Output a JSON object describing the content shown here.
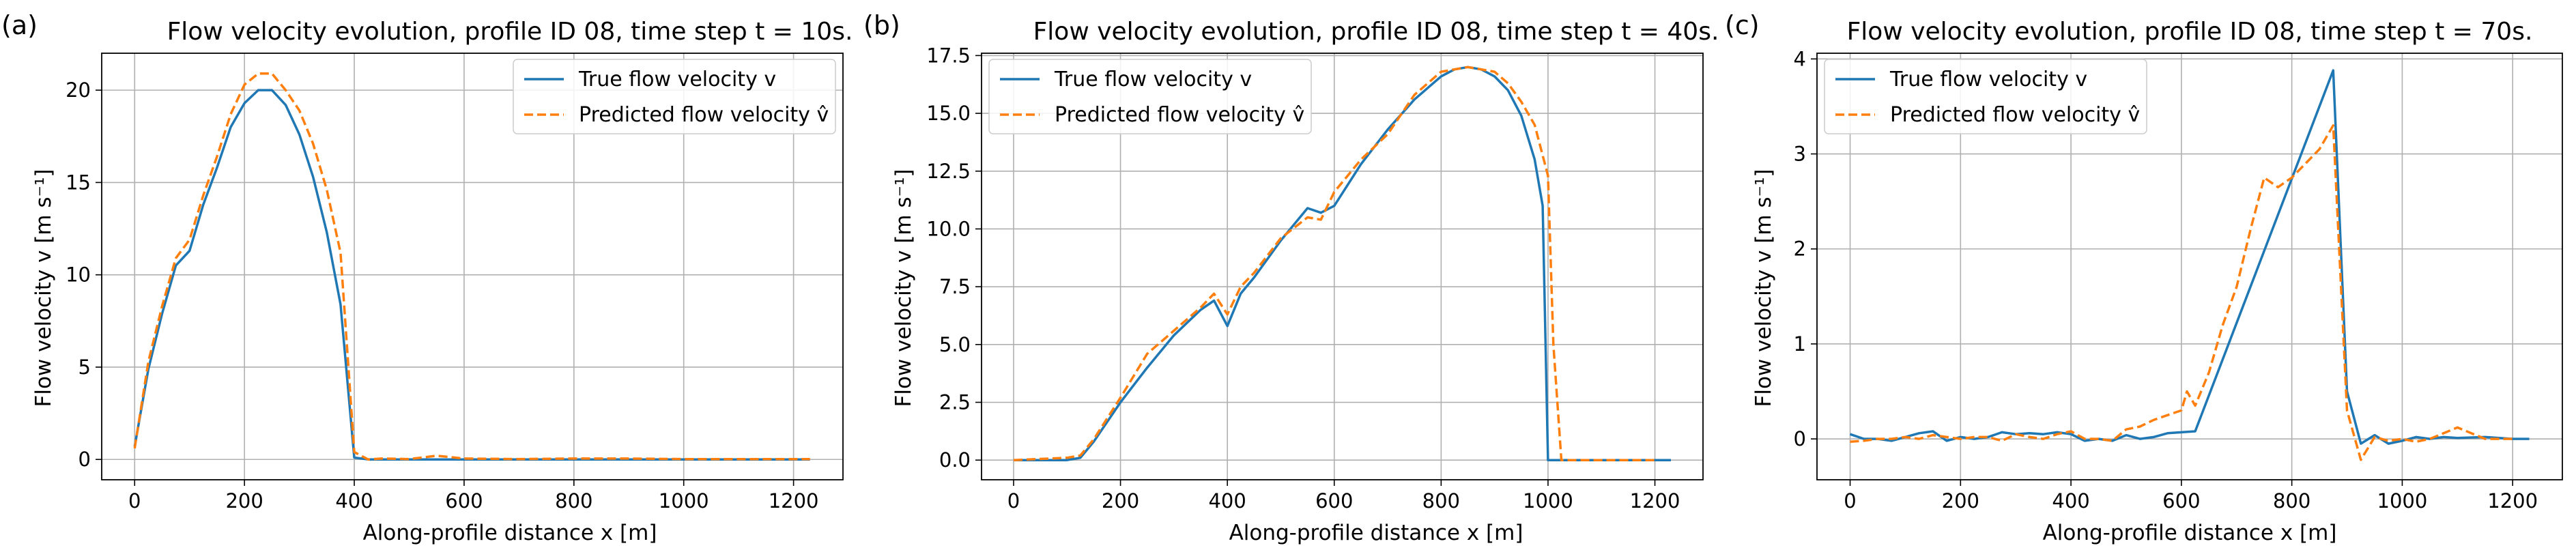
{
  "chart_data": [
    {
      "type": "line",
      "panel_label": "(a)",
      "title": "Flow velocity evolution, profile ID 08, time step t = 10s.",
      "xlabel": "Along-profile distance x [m]",
      "ylabel": "Flow velocity v [m s⁻¹]",
      "xlim": [
        -60,
        1290
      ],
      "ylim": [
        -1.1,
        22
      ],
      "xticks": [
        0,
        200,
        400,
        600,
        800,
        1000,
        1200
      ],
      "yticks": [
        0,
        5,
        10,
        15,
        20
      ],
      "grid": true,
      "legend_position": "top-right",
      "series": [
        {
          "name": "True flow velocity v",
          "style": "solid",
          "color": "#1f77b4",
          "x": [
            0,
            25,
            50,
            75,
            100,
            125,
            150,
            175,
            200,
            225,
            250,
            275,
            300,
            325,
            350,
            375,
            400,
            425,
            450,
            500,
            550,
            600,
            700,
            800,
            900,
            1000,
            1100,
            1200,
            1230
          ],
          "y": [
            0.7,
            4.9,
            7.9,
            10.5,
            11.3,
            13.8,
            15.8,
            18.0,
            19.3,
            20.0,
            20.0,
            19.2,
            17.6,
            15.3,
            12.3,
            8.4,
            0.1,
            0.0,
            0.0,
            0.0,
            0.0,
            0.0,
            0.0,
            0.0,
            0.0,
            0.0,
            0.0,
            0.0,
            0.0
          ]
        },
        {
          "name": "Predicted flow velocity v̂",
          "style": "dashed",
          "color": "#ff7f0e",
          "x": [
            0,
            25,
            50,
            75,
            100,
            125,
            150,
            175,
            200,
            225,
            250,
            275,
            300,
            325,
            350,
            375,
            400,
            425,
            450,
            500,
            550,
            600,
            700,
            800,
            900,
            1000,
            1100,
            1200,
            1230
          ],
          "y": [
            0.6,
            5.3,
            8.3,
            10.9,
            11.9,
            14.3,
            16.4,
            18.7,
            20.3,
            20.9,
            20.9,
            20.0,
            18.9,
            17.1,
            14.6,
            11.2,
            0.4,
            0.0,
            0.05,
            0.02,
            0.2,
            0.05,
            0.02,
            0.05,
            0.05,
            0.02,
            0.02,
            0.02,
            0.02
          ]
        }
      ]
    },
    {
      "type": "line",
      "panel_label": "(b)",
      "title": "Flow velocity evolution, profile ID 08, time step t = 40s.",
      "xlabel": "Along-profile distance x [m]",
      "ylabel": "Flow velocity v [m s⁻¹]",
      "xlim": [
        -60,
        1290
      ],
      "ylim": [
        -0.85,
        17.6
      ],
      "xticks": [
        0,
        200,
        400,
        600,
        800,
        1000,
        1200
      ],
      "yticks": [
        0.0,
        2.5,
        5.0,
        7.5,
        10.0,
        12.5,
        15.0,
        17.5
      ],
      "grid": true,
      "legend_position": "top-left",
      "series": [
        {
          "name": "True flow velocity v",
          "style": "solid",
          "color": "#1f77b4",
          "x": [
            0,
            50,
            100,
            125,
            150,
            200,
            250,
            300,
            350,
            375,
            400,
            425,
            450,
            500,
            550,
            575,
            600,
            650,
            700,
            750,
            800,
            825,
            850,
            875,
            900,
            925,
            950,
            975,
            990,
            1000,
            1025,
            1050,
            1100,
            1150,
            1200,
            1230
          ],
          "y": [
            0.0,
            0.0,
            0.0,
            0.1,
            0.8,
            2.5,
            4.0,
            5.4,
            6.5,
            6.9,
            5.8,
            7.2,
            7.9,
            9.5,
            10.9,
            10.7,
            11.0,
            12.8,
            14.3,
            15.6,
            16.6,
            16.9,
            17.0,
            16.9,
            16.6,
            16.0,
            14.9,
            13.0,
            11.0,
            0.0,
            0.0,
            0.0,
            0.0,
            0.0,
            0.0,
            0.0
          ]
        },
        {
          "name": "Predicted flow velocity v̂",
          "style": "dashed",
          "color": "#ff7f0e",
          "x": [
            0,
            50,
            100,
            125,
            150,
            200,
            250,
            300,
            350,
            375,
            400,
            425,
            450,
            500,
            550,
            575,
            600,
            650,
            700,
            750,
            800,
            825,
            850,
            875,
            900,
            925,
            950,
            975,
            1000,
            1010,
            1025,
            1050,
            1100,
            1150,
            1200
          ],
          "y": [
            0.0,
            0.05,
            0.1,
            0.2,
            0.9,
            2.7,
            4.6,
            5.6,
            6.6,
            7.2,
            6.3,
            7.5,
            8.1,
            9.6,
            10.5,
            10.4,
            11.6,
            13.0,
            14.1,
            15.8,
            16.8,
            16.9,
            17.0,
            16.9,
            16.8,
            16.3,
            15.5,
            14.5,
            12.3,
            5.0,
            0.0,
            0.0,
            0.0,
            0.0,
            0.0
          ]
        }
      ]
    },
    {
      "type": "line",
      "panel_label": "(c)",
      "title": "Flow velocity evolution, profile ID 08, time step t = 70s.",
      "xlabel": "Along-profile distance x [m]",
      "ylabel": "Flow velocity v [m s⁻¹]",
      "xlim": [
        -60,
        1290
      ],
      "ylim": [
        -0.43,
        4.06
      ],
      "xticks": [
        0,
        200,
        400,
        600,
        800,
        1000,
        1200
      ],
      "yticks": [
        0,
        1,
        2,
        3,
        4
      ],
      "grid": true,
      "legend_position": "top-left",
      "series": [
        {
          "name": "True flow velocity v",
          "style": "solid",
          "color": "#1f77b4",
          "x": [
            0,
            25,
            50,
            75,
            100,
            125,
            150,
            175,
            200,
            225,
            250,
            275,
            300,
            325,
            350,
            375,
            400,
            425,
            450,
            475,
            500,
            525,
            550,
            575,
            600,
            625,
            875,
            900,
            925,
            950,
            975,
            1000,
            1025,
            1050,
            1075,
            1100,
            1150,
            1200,
            1230
          ],
          "y": [
            0.05,
            0.0,
            0.0,
            -0.02,
            0.02,
            0.06,
            0.08,
            -0.02,
            0.02,
            0.0,
            0.02,
            0.07,
            0.05,
            0.06,
            0.05,
            0.07,
            0.05,
            -0.02,
            0.0,
            -0.02,
            0.04,
            0.0,
            0.02,
            0.06,
            0.07,
            0.08,
            3.88,
            0.5,
            -0.05,
            0.04,
            -0.05,
            -0.02,
            0.02,
            0.0,
            0.02,
            0.01,
            0.02,
            0.0,
            0.0
          ]
        },
        {
          "name": "Predicted flow velocity v̂",
          "style": "dashed",
          "color": "#ff7f0e",
          "x": [
            0,
            25,
            50,
            75,
            100,
            125,
            150,
            175,
            200,
            225,
            250,
            275,
            300,
            325,
            350,
            375,
            400,
            425,
            450,
            475,
            500,
            525,
            550,
            575,
            600,
            610,
            625,
            650,
            675,
            700,
            725,
            750,
            775,
            800,
            825,
            850,
            875,
            900,
            925,
            950,
            975,
            1000,
            1025,
            1050,
            1075,
            1100,
            1150,
            1200
          ],
          "y": [
            -0.03,
            -0.02,
            0.0,
            0.0,
            0.02,
            0.0,
            0.04,
            0.02,
            0.0,
            0.02,
            0.02,
            -0.02,
            0.05,
            0.02,
            0.0,
            0.05,
            0.08,
            0.0,
            0.0,
            -0.02,
            0.1,
            0.13,
            0.2,
            0.25,
            0.3,
            0.5,
            0.35,
            0.7,
            1.2,
            1.6,
            2.2,
            2.75,
            2.65,
            2.75,
            2.9,
            3.05,
            3.3,
            0.3,
            -0.22,
            0.02,
            -0.02,
            0.0,
            -0.03,
            0.0,
            0.06,
            0.12,
            0.0,
            0.0
          ]
        }
      ]
    }
  ]
}
